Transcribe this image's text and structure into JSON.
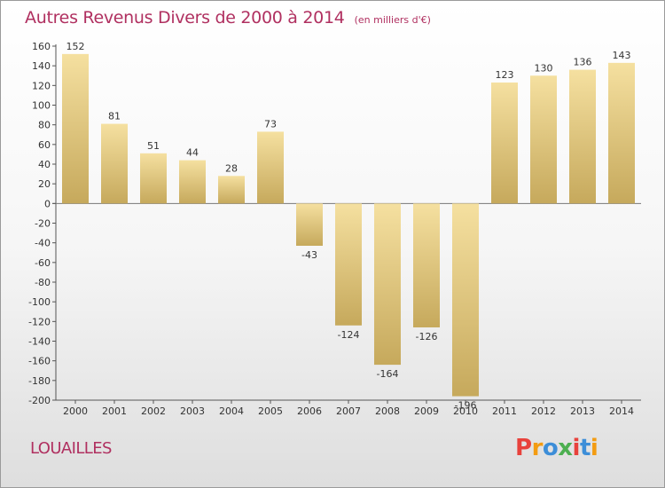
{
  "header": {
    "title": "Autres Revenus Divers de 2000 à 2014",
    "unit": "(en milliers d'€)"
  },
  "footer": {
    "commune": "LOUAILLES",
    "brand": "Proxiti"
  },
  "colors": {
    "title": "#b03060",
    "bar_light": "#f5e0a0",
    "bar_dark": "#c6a95c",
    "axis": "#555555",
    "label": "#333333",
    "brand_letters": [
      "#e8423c",
      "#f39c12",
      "#3d8ed8",
      "#4caf50",
      "#e8423c",
      "#3d8ed8",
      "#f39c12"
    ]
  },
  "chart_data": {
    "type": "bar",
    "categories": [
      "2000",
      "2001",
      "2002",
      "2003",
      "2004",
      "2005",
      "2006",
      "2007",
      "2008",
      "2009",
      "2010",
      "2011",
      "2012",
      "2013",
      "2014"
    ],
    "values": [
      152,
      81,
      51,
      44,
      28,
      73,
      -43,
      -124,
      -164,
      -126,
      -196,
      123,
      130,
      136,
      143
    ],
    "value_labels": [
      "152",
      "81",
      "51",
      "44",
      "28",
      "73",
      "-43",
      "-124",
      "-164",
      "-126",
      "-196",
      "123",
      "130",
      "136",
      "143"
    ],
    "yticks": [
      160,
      140,
      120,
      100,
      80,
      60,
      40,
      20,
      0,
      -20,
      -40,
      -60,
      -80,
      -100,
      -120,
      -140,
      -160,
      -180,
      -200
    ],
    "ylim": [
      -200,
      160
    ],
    "grid": false,
    "legend": "none"
  }
}
